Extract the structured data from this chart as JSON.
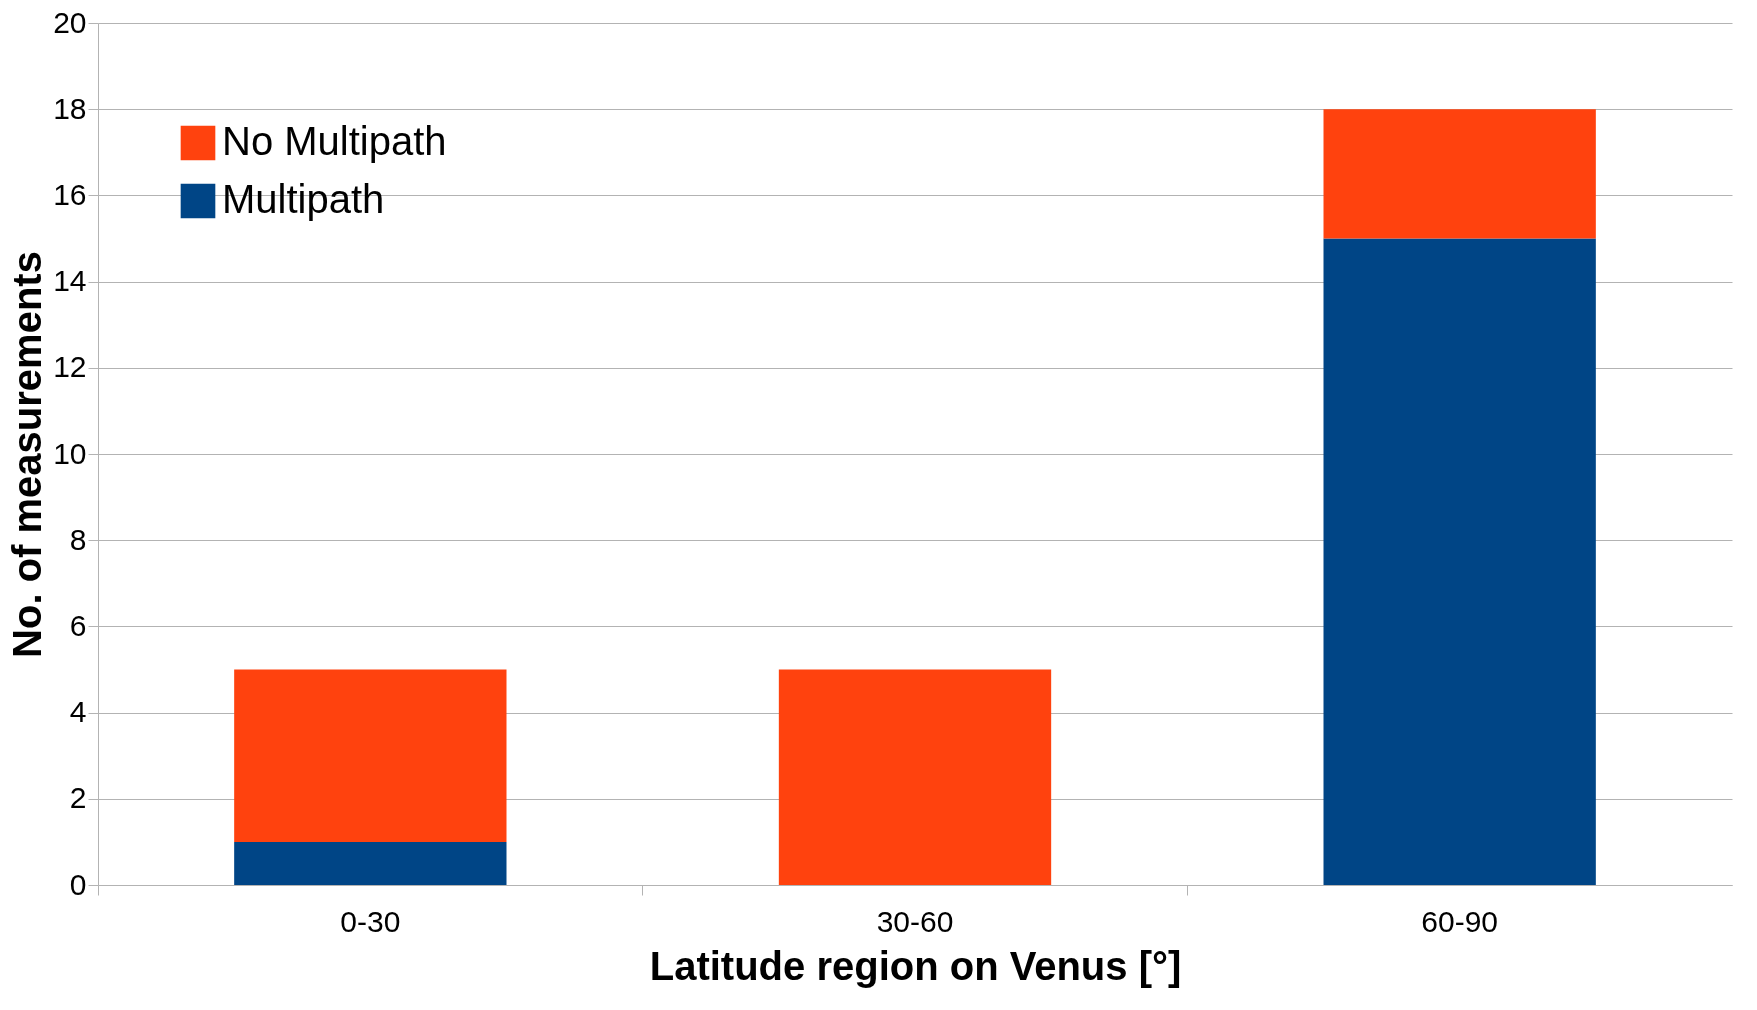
{
  "chart_data": {
    "type": "bar",
    "stacked": true,
    "xlabel": "Latitude region on Venus [°]",
    "ylabel": "No. of measurements",
    "categories": [
      "0-30",
      "30-60",
      "60-90"
    ],
    "series": [
      {
        "name": "Multipath",
        "color": "#004586",
        "values": [
          1,
          0,
          15
        ]
      },
      {
        "name": "No Multipath",
        "color": "#ff420e",
        "values": [
          4,
          5,
          3
        ]
      }
    ],
    "ylim": [
      0,
      20
    ],
    "yticks": [
      0,
      2,
      4,
      6,
      8,
      10,
      12,
      14,
      16,
      18,
      20
    ],
    "grid": "y",
    "legend": "top left"
  }
}
